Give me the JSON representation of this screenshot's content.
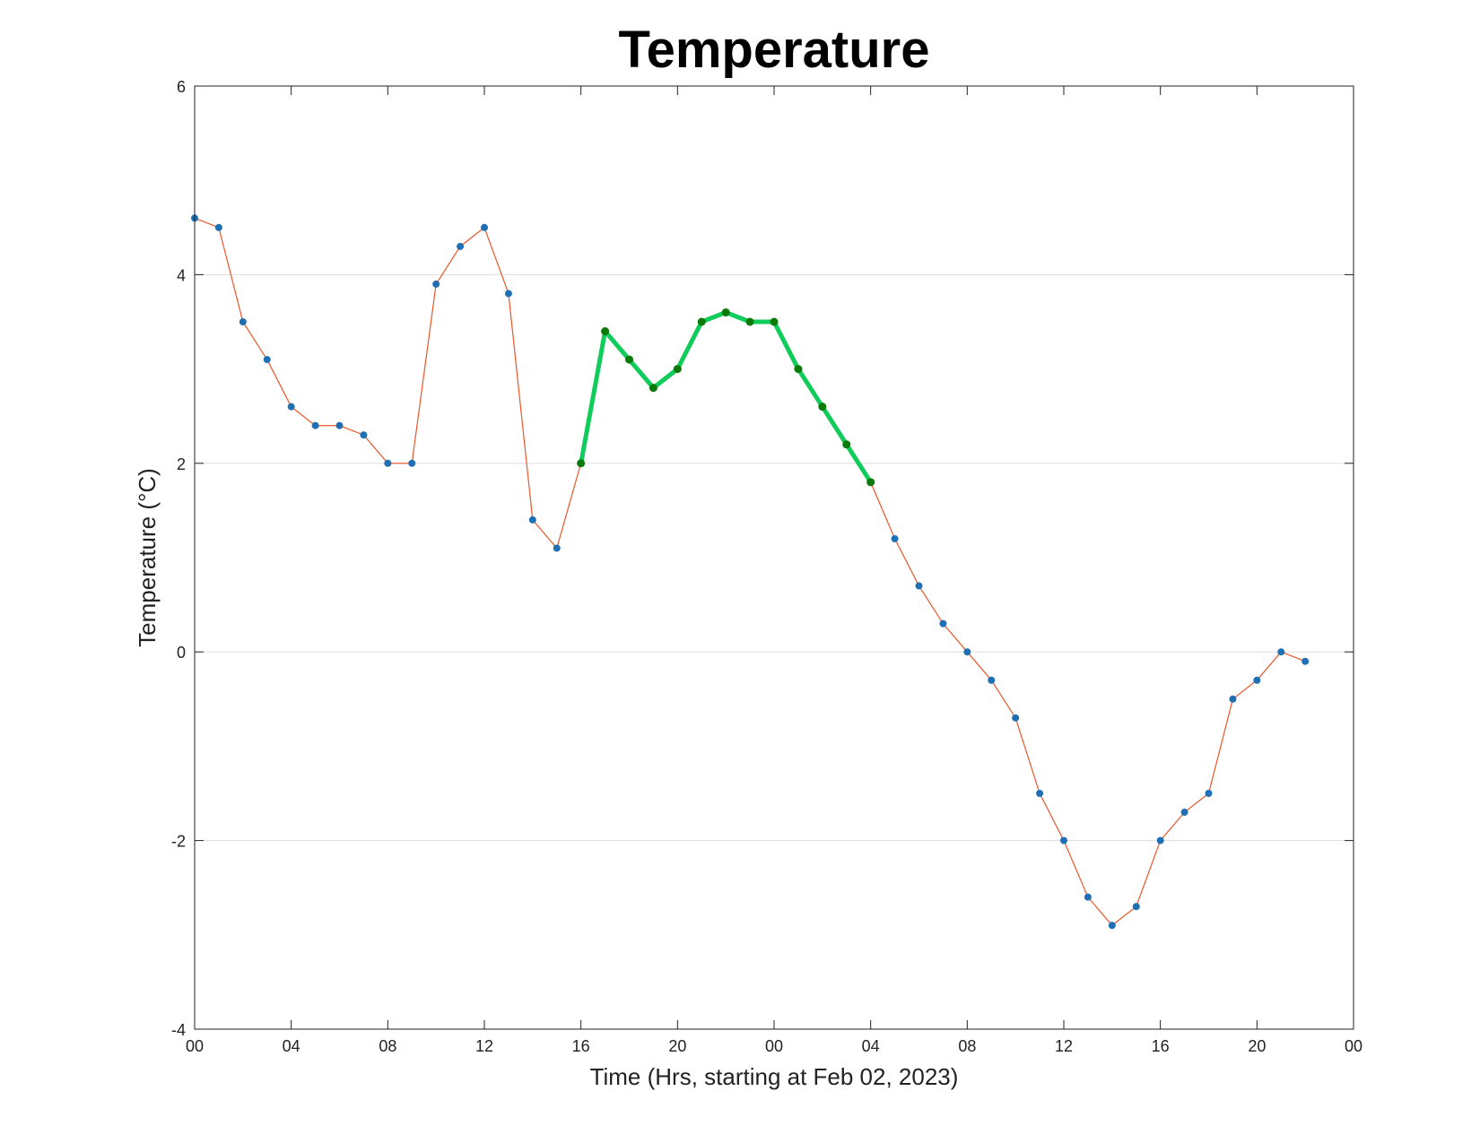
{
  "chart_data": {
    "type": "line",
    "title": "Temperature",
    "xlabel": "Time (Hrs, starting at Feb 02, 2023)",
    "ylabel": "Temperature (°C)",
    "xlim": [
      0,
      48
    ],
    "ylim": [
      -4,
      6
    ],
    "x_tick_values": [
      0,
      4,
      8,
      12,
      16,
      20,
      24,
      28,
      32,
      36,
      40,
      44,
      48
    ],
    "x_tick_labels": [
      "00",
      "04",
      "08",
      "12",
      "16",
      "20",
      "00",
      "04",
      "08",
      "12",
      "16",
      "20",
      "00"
    ],
    "y_ticks": [
      -4,
      -2,
      0,
      2,
      4,
      6
    ],
    "y_tick_labels": [
      "-4",
      "-2",
      "0",
      "2",
      "4",
      "6"
    ],
    "grid": {
      "horizontal": true,
      "vertical": false
    },
    "x": [
      0,
      1,
      2,
      3,
      4,
      5,
      6,
      7,
      8,
      9,
      10,
      11,
      12,
      13,
      14,
      15,
      16,
      17,
      18,
      19,
      20,
      21,
      22,
      23,
      24,
      25,
      26,
      27,
      28,
      29,
      30,
      31,
      32,
      33,
      34,
      35,
      36,
      37,
      38,
      39,
      40,
      41,
      42,
      43,
      44,
      45,
      46
    ],
    "series": [
      {
        "values": [
          4.6,
          4.5,
          3.5,
          3.1,
          2.6,
          2.4,
          2.4,
          2.3,
          2.0,
          2.0,
          3.9,
          4.3,
          4.5,
          3.8,
          1.4,
          1.1,
          2.0,
          3.4,
          3.1,
          2.8,
          3.0,
          3.5,
          3.6,
          3.5,
          3.5,
          3.0,
          2.6,
          2.2,
          1.8,
          1.2,
          0.7,
          0.3,
          0.0,
          -0.3,
          -0.7,
          -1.5,
          -2.0,
          -2.6,
          -2.9,
          -2.7,
          -2.0,
          -1.7,
          -1.5,
          -0.5,
          -0.3,
          0.0,
          -0.1
        ],
        "color": "#e8562a",
        "marker_color": "#1f6fb4"
      }
    ],
    "highlight": {
      "x_range": [
        16,
        28
      ],
      "color": "#10cc5a",
      "marker_color": "#0a7a0a"
    }
  }
}
